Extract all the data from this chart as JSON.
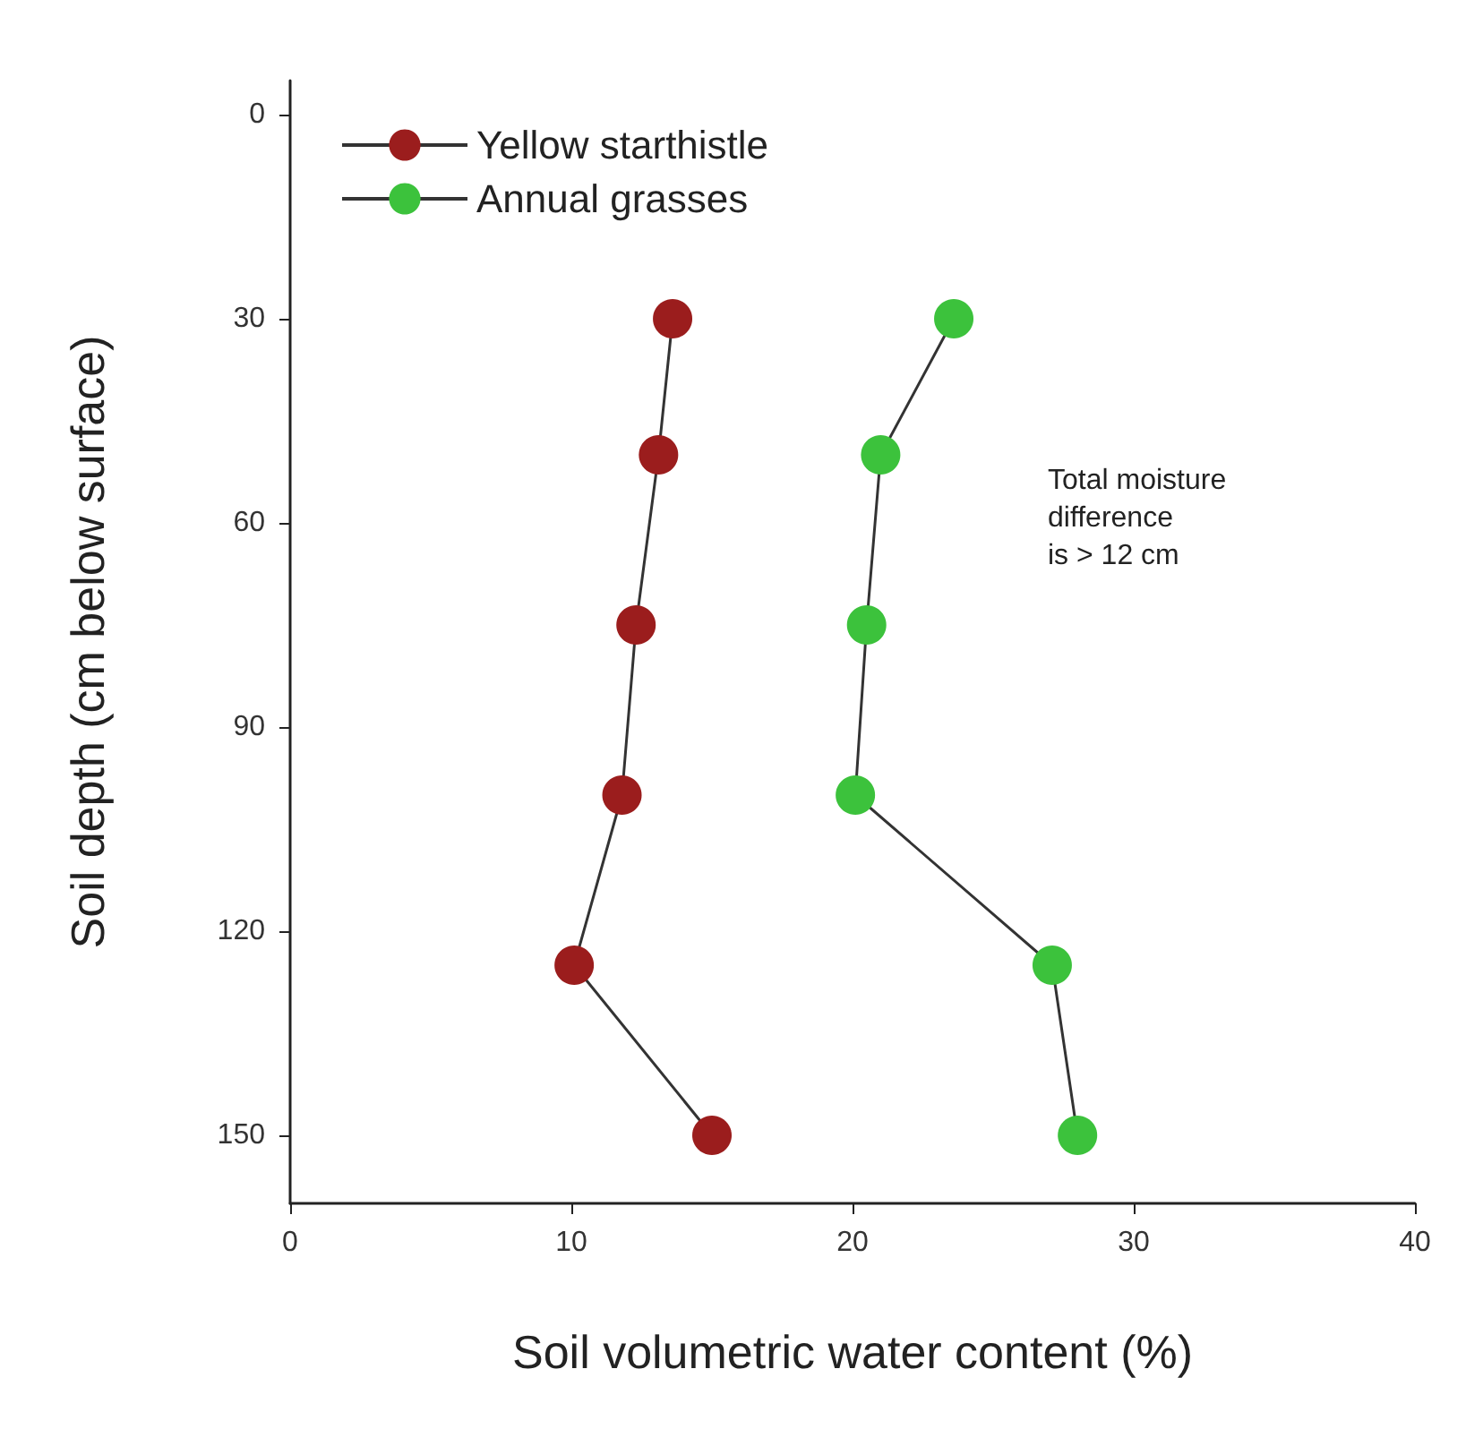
{
  "chart_data": {
    "type": "line",
    "xlabel": "Soil volumetric water content (%)",
    "ylabel": "Soil depth (cm below surface)",
    "xlim": [
      0,
      40
    ],
    "xticks": [
      0,
      10,
      20,
      30,
      40
    ],
    "ylim": [
      160,
      -5
    ],
    "yticks": [
      0,
      30,
      60,
      90,
      120,
      150
    ],
    "series": [
      {
        "name": "Yellow starthistle",
        "color": "#9b1d1d",
        "x": [
          13.6,
          13.1,
          12.3,
          11.8,
          10.1,
          15.0
        ],
        "values": [
          30,
          50,
          75,
          100,
          125,
          150
        ]
      },
      {
        "name": "Annual grasses",
        "color": "#3cc23c",
        "x": [
          23.6,
          21.0,
          20.5,
          20.1,
          27.1,
          28.0
        ],
        "values": [
          30,
          50,
          75,
          100,
          125,
          150
        ]
      }
    ],
    "annotations": [
      "Total moisture\ndifference\nis > 12 cm"
    ],
    "marker": "circle",
    "line_style": "solid",
    "grid": false,
    "legend": "top left"
  }
}
